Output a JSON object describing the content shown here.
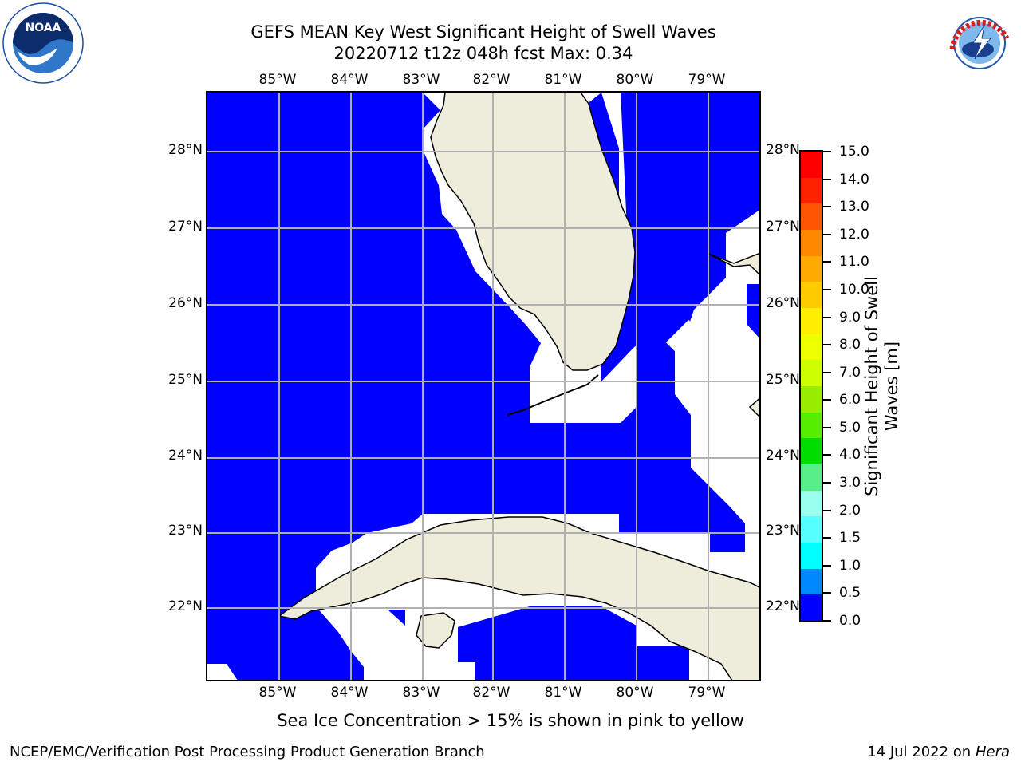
{
  "title": {
    "line1": "GEFS MEAN Key West Significant Height of Swell Waves",
    "line2": "20220712 t12z 048h fcst   Max: 0.34"
  },
  "logos": {
    "left": "NOAA",
    "right": "NATIONAL WEATHER SERVICE"
  },
  "map": {
    "lon_labels": [
      "85°W",
      "84°W",
      "83°W",
      "82°W",
      "81°W",
      "80°W",
      "79°W"
    ],
    "lat_labels": [
      "28°N",
      "27°N",
      "26°N",
      "25°N",
      "24°N",
      "23°N",
      "22°N"
    ],
    "colors": {
      "ocean_value": "#0000ff",
      "land": "#eeeddc",
      "no_data": "#ffffff",
      "grid": "#b0b0b0"
    }
  },
  "colorbar": {
    "title_line1": "Significant Height of Swell",
    "title_line2": "Waves [m]",
    "labels": [
      "15.0",
      "14.0",
      "13.0",
      "12.0",
      "11.0",
      "10.0",
      "9.0",
      "8.0",
      "7.0",
      "6.0",
      "5.0",
      "4.0",
      "3.0",
      "2.0",
      "1.5",
      "1.0",
      "0.5",
      "0.0"
    ],
    "colors": [
      "#ff0000",
      "#ff2200",
      "#ff5500",
      "#ff8800",
      "#ffaa00",
      "#ffcc00",
      "#ffee00",
      "#eeff00",
      "#ccff00",
      "#99ee00",
      "#55ee00",
      "#00dd00",
      "#55ee88",
      "#99ffee",
      "#55ffff",
      "#00ffff",
      "#0088ff",
      "#0000ff"
    ]
  },
  "note": "Sea Ice Concentration > 15% is shown in pink to yellow",
  "footer": {
    "left": "NCEP/EMC/Verification Post Processing Product Generation Branch",
    "right_prefix": "14 Jul 2022 on ",
    "right_host": "Hera"
  }
}
